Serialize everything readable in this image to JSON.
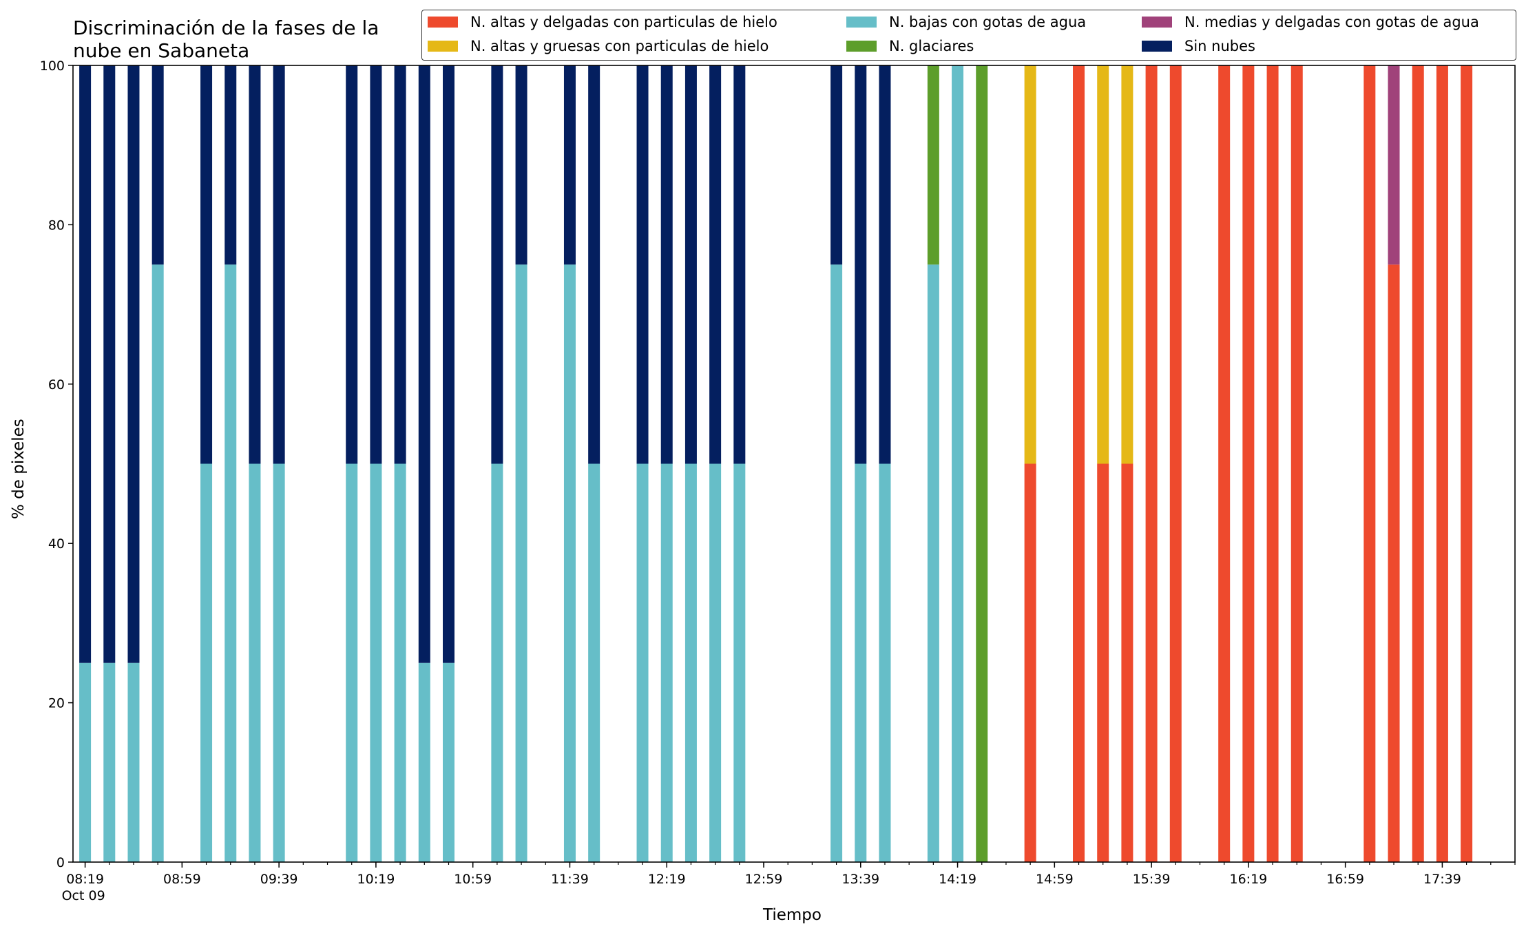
{
  "chart_data": {
    "type": "bar",
    "stacked": true,
    "title_lines": [
      "Discriminación de la fases de la",
      "nube en Sabaneta"
    ],
    "xlabel": "Tiempo",
    "ylabel": "% de pixeles",
    "ylim": [
      0,
      100
    ],
    "yticks": [
      0,
      20,
      40,
      60,
      80,
      100
    ],
    "x_range": [
      "08:14",
      "18:09"
    ],
    "x_tick_labels": [
      "08:19",
      "08:59",
      "09:39",
      "10:19",
      "10:59",
      "11:39",
      "12:19",
      "12:59",
      "13:39",
      "14:19",
      "14:59",
      "15:39",
      "16:19",
      "16:59",
      "17:39"
    ],
    "x_date_label": "Oct 09",
    "legend_position": "top-right",
    "grid": false,
    "times": [
      "08:19",
      "08:29",
      "08:39",
      "08:49",
      "09:09",
      "09:19",
      "09:29",
      "09:39",
      "10:09",
      "10:19",
      "10:29",
      "10:39",
      "10:49",
      "11:09",
      "11:19",
      "11:39",
      "11:49",
      "12:09",
      "12:19",
      "12:29",
      "12:39",
      "12:49",
      "13:29",
      "13:39",
      "13:49",
      "14:09",
      "14:19",
      "14:29",
      "14:49",
      "15:09",
      "15:19",
      "15:29",
      "15:39",
      "15:49",
      "16:09",
      "16:19",
      "16:29",
      "16:39",
      "17:09",
      "17:19",
      "17:29",
      "17:39",
      "17:49"
    ],
    "series": [
      {
        "name": "N. altas y delgadas con particulas de hielo",
        "color": "#ee4a2d",
        "values": [
          0,
          0,
          0,
          0,
          0,
          0,
          0,
          0,
          0,
          0,
          0,
          0,
          0,
          0,
          0,
          0,
          0,
          0,
          0,
          0,
          0,
          0,
          0,
          0,
          0,
          0,
          0,
          0,
          50,
          100,
          50,
          50,
          100,
          100,
          100,
          100,
          100,
          100,
          100,
          75,
          100,
          100,
          100
        ]
      },
      {
        "name": "N. altas y gruesas con particulas de hielo",
        "color": "#e5b817",
        "values": [
          0,
          0,
          0,
          0,
          0,
          0,
          0,
          0,
          0,
          0,
          0,
          0,
          0,
          0,
          0,
          0,
          0,
          0,
          0,
          0,
          0,
          0,
          0,
          0,
          0,
          0,
          0,
          0,
          50,
          0,
          50,
          50,
          0,
          0,
          0,
          0,
          0,
          0,
          0,
          0,
          0,
          0,
          0
        ]
      },
      {
        "name": "N. bajas con gotas de agua",
        "color": "#66bec8",
        "values": [
          25,
          25,
          25,
          75,
          50,
          75,
          50,
          50,
          50,
          50,
          50,
          25,
          25,
          50,
          75,
          75,
          50,
          50,
          50,
          50,
          50,
          50,
          75,
          50,
          50,
          75,
          100,
          0,
          0,
          0,
          0,
          0,
          0,
          0,
          0,
          0,
          0,
          0,
          0,
          0,
          0,
          0,
          0
        ]
      },
      {
        "name": "N. glaciares",
        "color": "#5d9e2b",
        "values": [
          0,
          0,
          0,
          0,
          0,
          0,
          0,
          0,
          0,
          0,
          0,
          0,
          0,
          0,
          0,
          0,
          0,
          0,
          0,
          0,
          0,
          0,
          0,
          0,
          0,
          25,
          0,
          100,
          0,
          0,
          0,
          0,
          0,
          0,
          0,
          0,
          0,
          0,
          0,
          0,
          0,
          0,
          0
        ]
      },
      {
        "name": "N. medias y delgadas con gotas de agua",
        "color": "#a0427a",
        "values": [
          0,
          0,
          0,
          0,
          0,
          0,
          0,
          0,
          0,
          0,
          0,
          0,
          0,
          0,
          0,
          0,
          0,
          0,
          0,
          0,
          0,
          0,
          0,
          0,
          0,
          0,
          0,
          0,
          0,
          0,
          0,
          0,
          0,
          0,
          0,
          0,
          0,
          0,
          0,
          25,
          0,
          0,
          0
        ]
      },
      {
        "name": "Sin nubes",
        "color": "#041f5f",
        "values": [
          75,
          75,
          75,
          25,
          50,
          25,
          50,
          50,
          50,
          50,
          50,
          75,
          75,
          50,
          25,
          25,
          50,
          50,
          50,
          50,
          50,
          50,
          25,
          50,
          50,
          0,
          0,
          0,
          0,
          0,
          0,
          0,
          0,
          0,
          0,
          0,
          0,
          0,
          0,
          0,
          0,
          0,
          0
        ]
      }
    ]
  }
}
